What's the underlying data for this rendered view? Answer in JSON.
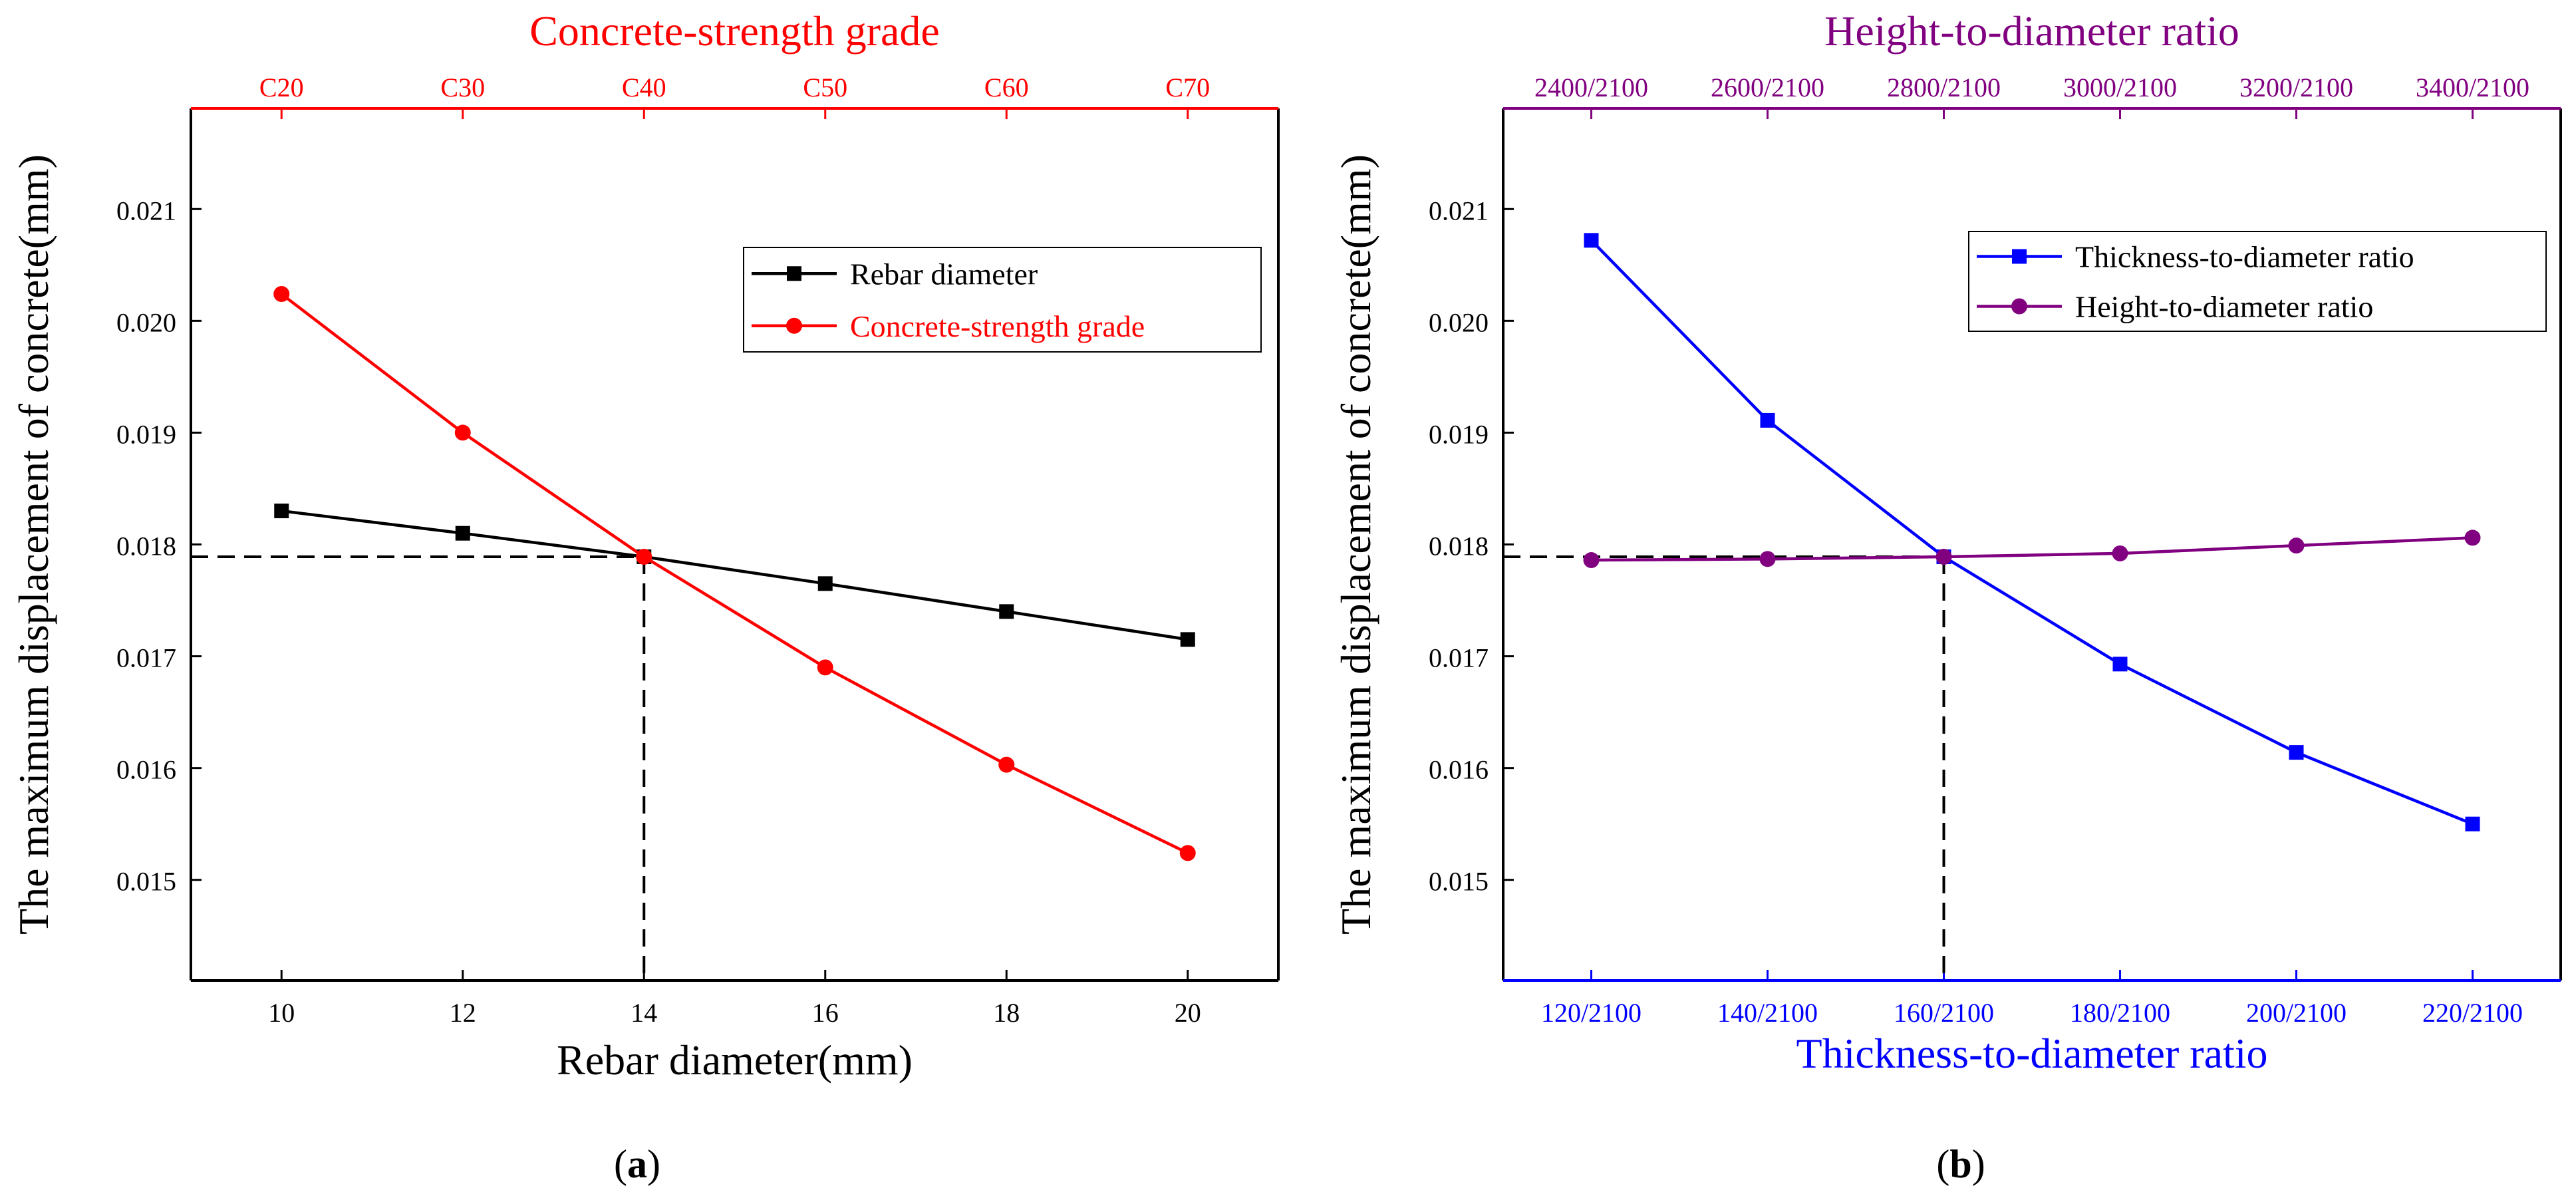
{
  "chart_data": [
    {
      "panel_label": "(a)",
      "panel_letter": "a",
      "type": "line",
      "ylabel": "The maximum displacement of concrete(mm)",
      "ylim": [
        0.0141,
        0.0219
      ],
      "yticks": [
        0.015,
        0.016,
        0.017,
        0.018,
        0.019,
        0.02,
        0.021
      ],
      "ytick_labels": [
        "0.015",
        "0.016",
        "0.017",
        "0.018",
        "0.019",
        "0.020",
        "0.021"
      ],
      "x_bottom": {
        "label": "Rebar diameter(mm)",
        "range": [
          9,
          21
        ],
        "ticks": [
          10,
          12,
          14,
          16,
          18,
          20
        ],
        "tick_labels": [
          "10",
          "12",
          "14",
          "16",
          "18",
          "20"
        ],
        "color": "#000000"
      },
      "x_top": {
        "label": "Concrete-strength grade",
        "ticks": [
          10,
          12,
          14,
          16,
          18,
          20
        ],
        "tick_labels": [
          "C20",
          "C30",
          "C40",
          "C50",
          "C60",
          "C70"
        ],
        "color": "#ff0000"
      },
      "series": [
        {
          "name": "Rebar diameter",
          "axis": "bottom",
          "color": "#000000",
          "marker": "square",
          "x": [
            10,
            12,
            14,
            16,
            18,
            20
          ],
          "values": [
            0.0183,
            0.0181,
            0.01789,
            0.01765,
            0.0174,
            0.01715
          ]
        },
        {
          "name": "Concrete-strength grade",
          "axis": "top",
          "color": "#ff0000",
          "marker": "circle",
          "x": [
            10,
            12,
            14,
            16,
            18,
            20
          ],
          "values": [
            0.02024,
            0.019,
            0.01789,
            0.0169,
            0.01603,
            0.01524
          ]
        }
      ],
      "reference": {
        "x": 14,
        "y": 0.01789
      },
      "legend": "top-right",
      "grid": false
    },
    {
      "panel_label": "(b)",
      "panel_letter": "b",
      "type": "line",
      "ylabel": "The maximum displacement of concrete(mm)",
      "ylim": [
        0.0141,
        0.0219
      ],
      "yticks": [
        0.015,
        0.016,
        0.017,
        0.018,
        0.019,
        0.02,
        0.021
      ],
      "ytick_labels": [
        "0.015",
        "0.016",
        "0.017",
        "0.018",
        "0.019",
        "0.020",
        "0.021"
      ],
      "x_bottom": {
        "label": "Thickness-to-diameter ratio",
        "range": [
          0.5,
          6.5
        ],
        "ticks": [
          1,
          2,
          3,
          4,
          5,
          6
        ],
        "tick_labels": [
          "120/2100",
          "140/2100",
          "160/2100",
          "180/2100",
          "200/2100",
          "220/2100"
        ],
        "color": "#0000ff"
      },
      "x_top": {
        "label": "Height-to-diameter ratio",
        "ticks": [
          1,
          2,
          3,
          4,
          5,
          6
        ],
        "tick_labels": [
          "2400/2100",
          "2600/2100",
          "2800/2100",
          "3000/2100",
          "3200/2100",
          "3400/2100"
        ],
        "color": "#800080"
      },
      "series": [
        {
          "name": "Thickness-to-diameter ratio",
          "axis": "bottom",
          "color": "#0000ff",
          "marker": "square",
          "x": [
            1,
            2,
            3,
            4,
            5,
            6
          ],
          "values": [
            0.02072,
            0.01911,
            0.01789,
            0.01693,
            0.01614,
            0.0155
          ]
        },
        {
          "name": "Height-to-diameter ratio",
          "axis": "top",
          "color": "#800080",
          "marker": "circle",
          "x": [
            1,
            2,
            3,
            4,
            5,
            6
          ],
          "values": [
            0.01786,
            0.01787,
            0.01789,
            0.01792,
            0.01799,
            0.01806
          ]
        }
      ],
      "reference": {
        "x": 3,
        "y": 0.01789
      },
      "legend": "top-right",
      "grid": false
    }
  ]
}
